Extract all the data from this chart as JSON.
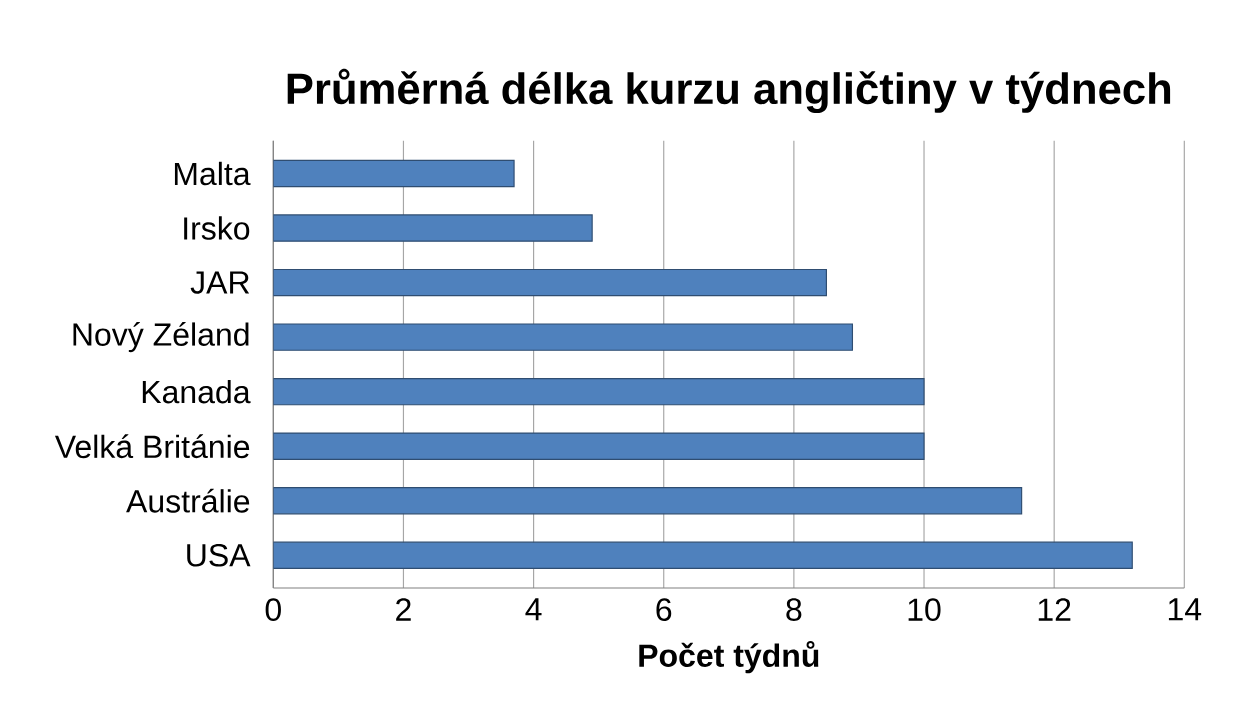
{
  "chart_data": {
    "type": "bar",
    "orientation": "horizontal",
    "title": "Průměrná délka kurzu angličtiny v týdnech",
    "xlabel": "Počet týdnů",
    "categories": [
      "Malta",
      "Irsko",
      "JAR",
      "Nový Zéland",
      "Kanada",
      "Velká Británie",
      "Austrálie",
      "USA"
    ],
    "values": [
      3.7,
      4.9,
      8.5,
      8.9,
      10,
      10,
      11.5,
      13.2
    ],
    "color": "#4f81bd",
    "xlim": [
      0,
      14
    ],
    "xticks": [
      0,
      2,
      4,
      6,
      8,
      10,
      12,
      14
    ],
    "grid": "x"
  }
}
